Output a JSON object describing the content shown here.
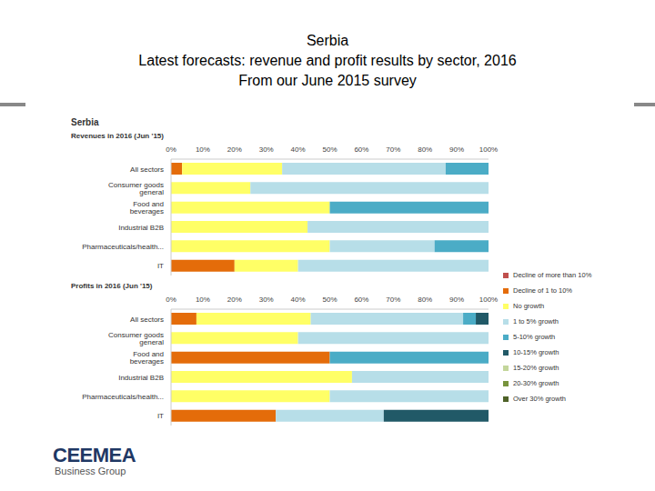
{
  "title": [
    "Serbia",
    "Latest forecasts: revenue and profit results by sector, 2016",
    "From our June 2015 survey"
  ],
  "panel_title": "Serbia",
  "logo": {
    "name": "CEEMEA",
    "tagline": "Business Group"
  },
  "chart_data": [
    {
      "type": "bar",
      "orientation": "horizontal",
      "stacked": true,
      "grid": false,
      "title": "Revenues in 2016 (Jun '15)",
      "categories": [
        "All sectors",
        "Consumer goods general",
        "Food and beverages",
        "Industrial B2B",
        "Pharmaceuticals/health...",
        "IT"
      ],
      "xlim": [
        0,
        100
      ],
      "xticks": [
        {
          "value": 0,
          "label": "0%"
        },
        {
          "value": 10,
          "label": "10%"
        },
        {
          "value": 20,
          "label": "20%"
        },
        {
          "value": 30,
          "label": "30%"
        },
        {
          "value": 40,
          "label": "40%"
        },
        {
          "value": 50,
          "label": "50%"
        },
        {
          "value": 60,
          "label": "60%"
        },
        {
          "value": 70,
          "label": "70%"
        },
        {
          "value": 80,
          "label": "80%"
        },
        {
          "value": 90,
          "label": "90%"
        },
        {
          "value": 100,
          "label": "100%"
        }
      ],
      "series": [
        {
          "name": "Decline of more than 10%",
          "color": "#c0504d",
          "values": [
            0,
            0,
            0,
            0,
            0,
            0
          ]
        },
        {
          "name": "Decline of 1 to 10%",
          "color": "#e46c0a",
          "values": [
            3.5,
            0,
            0,
            0,
            0,
            20
          ]
        },
        {
          "name": "No growth",
          "color": "#ffff66",
          "values": [
            31.5,
            25,
            50,
            43,
            50,
            20
          ]
        },
        {
          "name": "1 to 5% growth",
          "color": "#b7dee8",
          "values": [
            51.5,
            75,
            0,
            57,
            33,
            60
          ]
        },
        {
          "name": "5-10% growth",
          "color": "#4bacc6",
          "values": [
            13.5,
            0,
            50,
            0,
            17,
            0
          ]
        },
        {
          "name": "10-15% growth",
          "color": "#215967",
          "values": [
            0,
            0,
            0,
            0,
            0,
            0
          ]
        },
        {
          "name": "15-20% growth",
          "color": "#c3d69b",
          "values": [
            0,
            0,
            0,
            0,
            0,
            0
          ]
        },
        {
          "name": "20-30% growth",
          "color": "#77933c",
          "values": [
            0,
            0,
            0,
            0,
            0,
            0
          ]
        },
        {
          "name": "Over 30% growth",
          "color": "#4f6228",
          "values": [
            0,
            0,
            0,
            0,
            0,
            0
          ]
        }
      ]
    },
    {
      "type": "bar",
      "orientation": "horizontal",
      "stacked": true,
      "grid": false,
      "legend": "right",
      "title": "Profits in 2016 (Jun '15)",
      "categories": [
        "All sectors",
        "Consumer goods general",
        "Food and beverages",
        "Industrial B2B",
        "Pharmaceuticals/health...",
        "IT"
      ],
      "xlim": [
        0,
        100
      ],
      "xticks": [
        {
          "value": 0,
          "label": "0%"
        },
        {
          "value": 10,
          "label": "10%"
        },
        {
          "value": 20,
          "label": "20%"
        },
        {
          "value": 30,
          "label": "30%"
        },
        {
          "value": 40,
          "label": "40%"
        },
        {
          "value": 50,
          "label": "50%"
        },
        {
          "value": 60,
          "label": "60%"
        },
        {
          "value": 70,
          "label": "70%"
        },
        {
          "value": 80,
          "label": "80%"
        },
        {
          "value": 90,
          "label": "90%"
        },
        {
          "value": 100,
          "label": "100%"
        }
      ],
      "series": [
        {
          "name": "Decline of more than 10%",
          "color": "#c0504d",
          "values": [
            0,
            0,
            0,
            0,
            0,
            0
          ]
        },
        {
          "name": "Decline of 1 to 10%",
          "color": "#e46c0a",
          "values": [
            8,
            0,
            50,
            0,
            0,
            33
          ]
        },
        {
          "name": "No growth",
          "color": "#ffff66",
          "values": [
            36,
            40,
            0,
            57,
            50,
            0
          ]
        },
        {
          "name": "1 to 5% growth",
          "color": "#b7dee8",
          "values": [
            48,
            60,
            0,
            43,
            50,
            34
          ]
        },
        {
          "name": "5-10% growth",
          "color": "#4bacc6",
          "values": [
            4,
            0,
            50,
            0,
            0,
            0
          ]
        },
        {
          "name": "10-15% growth",
          "color": "#215967",
          "values": [
            4,
            0,
            0,
            0,
            0,
            33
          ]
        },
        {
          "name": "15-20% growth",
          "color": "#c3d69b",
          "values": [
            0,
            0,
            0,
            0,
            0,
            0
          ]
        },
        {
          "name": "20-30% growth",
          "color": "#77933c",
          "values": [
            0,
            0,
            0,
            0,
            0,
            0
          ]
        },
        {
          "name": "Over 30% growth",
          "color": "#4f6228",
          "values": [
            0,
            0,
            0,
            0,
            0,
            0
          ]
        }
      ]
    }
  ]
}
